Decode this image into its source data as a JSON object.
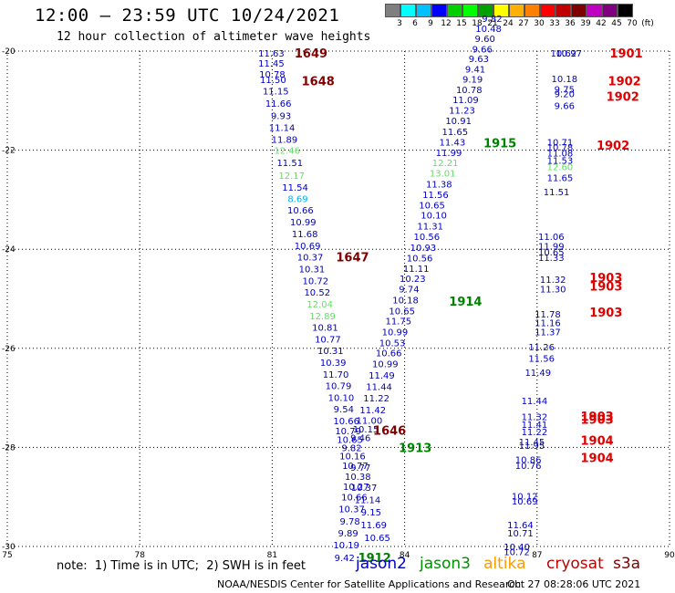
{
  "header": {
    "title": "12:00 – 23:59 UTC 10/24/2021",
    "subtitle": "12 hour collection of altimeter wave heights"
  },
  "colorbar": {
    "colors": [
      "#7f7f7f",
      "#00ffff",
      "#00c0ff",
      "#0000ff",
      "#00d000",
      "#00ff00",
      "#00a000",
      "#ffff00",
      "#ffb000",
      "#ff8000",
      "#ff0000",
      "#c00000",
      "#800000",
      "#c000c0",
      "#800080",
      "#000000"
    ],
    "labels": [
      "3",
      "6",
      "9",
      "12",
      "15",
      "18",
      "21",
      "24",
      "27",
      "30",
      "33",
      "36",
      "39",
      "42",
      "45",
      "70",
      "(ft)"
    ]
  },
  "map": {
    "x_ticks": [
      "75",
      "78",
      "81",
      "84",
      "87",
      "90"
    ],
    "y_ticks": [
      "-20",
      "-22",
      "-24",
      "-26",
      "-28",
      "-30"
    ]
  },
  "observations": [
    {
      "t": "11.63",
      "lon": 80.98,
      "lat": -20.04,
      "c": "#0000c0"
    },
    {
      "t": "11.45",
      "lon": 80.98,
      "lat": -20.24,
      "c": "#0000c0"
    },
    {
      "t": "10.78",
      "lon": 81.0,
      "lat": -20.46,
      "c": "#0000c0"
    },
    {
      "t": "11.50",
      "lon": 81.02,
      "lat": -20.57,
      "c": "#0000c0"
    },
    {
      "t": "11.15",
      "lon": 81.08,
      "lat": -20.8,
      "c": "#0000c0"
    },
    {
      "t": "11.66",
      "lon": 81.14,
      "lat": -21.05,
      "c": "#0000c0"
    },
    {
      "t": "9.93",
      "lon": 81.2,
      "lat": -21.3,
      "c": "#0000c0"
    },
    {
      "t": "11.14",
      "lon": 81.22,
      "lat": -21.54,
      "c": "#0000c0"
    },
    {
      "t": "11.89",
      "lon": 81.28,
      "lat": -21.78,
      "c": "#0000c0"
    },
    {
      "t": "12.46",
      "lon": 81.34,
      "lat": -22.0,
      "c": "#66dd66"
    },
    {
      "t": "11.51",
      "lon": 81.4,
      "lat": -22.25,
      "c": "#0000c0"
    },
    {
      "t": "12.17",
      "lon": 81.44,
      "lat": -22.5,
      "c": "#66dd66"
    },
    {
      "t": "11.54",
      "lon": 81.52,
      "lat": -22.74,
      "c": "#0000c0"
    },
    {
      "t": "8.69",
      "lon": 81.58,
      "lat": -22.97,
      "c": "#00b0ff"
    },
    {
      "t": "10.66",
      "lon": 81.64,
      "lat": -23.2,
      "c": "#0000c0"
    },
    {
      "t": "10.99",
      "lon": 81.7,
      "lat": -23.44,
      "c": "#0000c0"
    },
    {
      "t": "11.68",
      "lon": 81.74,
      "lat": -23.68,
      "c": "#0000c0"
    },
    {
      "t": "10.69",
      "lon": 81.8,
      "lat": -23.92,
      "c": "#0000c0"
    },
    {
      "t": "10.37",
      "lon": 81.86,
      "lat": -24.15,
      "c": "#0000c0"
    },
    {
      "t": "10.31",
      "lon": 81.9,
      "lat": -24.39,
      "c": "#0000c0"
    },
    {
      "t": "10.72",
      "lon": 81.98,
      "lat": -24.63,
      "c": "#0000c0"
    },
    {
      "t": "10.52",
      "lon": 82.02,
      "lat": -24.86,
      "c": "#0000c0"
    },
    {
      "t": "12.04",
      "lon": 82.08,
      "lat": -25.1,
      "c": "#66dd66"
    },
    {
      "t": "12.89",
      "lon": 82.14,
      "lat": -25.34,
      "c": "#66dd66"
    },
    {
      "t": "10.81",
      "lon": 82.2,
      "lat": -25.57,
      "c": "#0000c0"
    },
    {
      "t": "10.77",
      "lon": 82.26,
      "lat": -25.81,
      "c": "#0000c0"
    },
    {
      "t": "10.31",
      "lon": 82.32,
      "lat": -26.04,
      "c": "#0000c0"
    },
    {
      "t": "10.39",
      "lon": 82.38,
      "lat": -26.28,
      "c": "#0000c0"
    },
    {
      "t": "11.70",
      "lon": 82.44,
      "lat": -26.52,
      "c": "#0000c0"
    },
    {
      "t": "10.79",
      "lon": 82.5,
      "lat": -26.75,
      "c": "#0000c0"
    },
    {
      "t": "10.10",
      "lon": 82.56,
      "lat": -26.99,
      "c": "#0000c0"
    },
    {
      "t": "9.54",
      "lon": 82.62,
      "lat": -27.22,
      "c": "#0000c0"
    },
    {
      "t": "10.66",
      "lon": 82.68,
      "lat": -27.46,
      "c": "#0000c0"
    },
    {
      "t": "10.79",
      "lon": 82.72,
      "lat": -27.66,
      "c": "#0000c0"
    },
    {
      "t": "10.65",
      "lon": 82.76,
      "lat": -27.84,
      "c": "#0000c0"
    },
    {
      "t": "9.82",
      "lon": 82.8,
      "lat": -28.0,
      "c": "#0000c0"
    },
    {
      "t": "10.16",
      "lon": 82.82,
      "lat": -28.17,
      "c": "#0000c0"
    },
    {
      "t": "10.77",
      "lon": 82.88,
      "lat": -28.36,
      "c": "#0000c0"
    },
    {
      "t": "10.38",
      "lon": 82.94,
      "lat": -28.58,
      "c": "#0000c0"
    },
    {
      "t": "10.27",
      "lon": 82.9,
      "lat": -28.78,
      "c": "#0000c0"
    },
    {
      "t": "10.66",
      "lon": 82.86,
      "lat": -29.0,
      "c": "#0000c0"
    },
    {
      "t": "10.37",
      "lon": 82.8,
      "lat": -29.24,
      "c": "#0000c0"
    },
    {
      "t": "9.78",
      "lon": 82.76,
      "lat": -29.48,
      "c": "#0000c0"
    },
    {
      "t": "9.89",
      "lon": 82.72,
      "lat": -29.72,
      "c": "#0000c0"
    },
    {
      "t": "10.19",
      "lon": 82.68,
      "lat": -29.96,
      "c": "#0000c0"
    },
    {
      "t": "9.42",
      "lon": 82.64,
      "lat": -30.22,
      "c": "#0000c0"
    },
    {
      "t": "9.77",
      "lon": 83.0,
      "lat": -28.4,
      "c": "#0000c0"
    },
    {
      "t": "10.37",
      "lon": 83.08,
      "lat": -28.8,
      "c": "#0000c0"
    },
    {
      "t": "11.14",
      "lon": 83.16,
      "lat": -29.05,
      "c": "#0000c0"
    },
    {
      "t": "9.15",
      "lon": 83.24,
      "lat": -29.3,
      "c": "#0000c0"
    },
    {
      "t": "11.69",
      "lon": 83.3,
      "lat": -29.56,
      "c": "#0000c0"
    },
    {
      "t": "10.65",
      "lon": 83.38,
      "lat": -29.82,
      "c": "#0000c0"
    },
    {
      "t": "9.46",
      "lon": 83.0,
      "lat": -27.8,
      "c": "#0000c0"
    },
    {
      "t": "10.15",
      "lon": 83.12,
      "lat": -27.62,
      "c": "#0000c0"
    },
    {
      "t": "11.00",
      "lon": 83.2,
      "lat": -27.45,
      "c": "#0000c0"
    },
    {
      "t": "11.42",
      "lon": 83.28,
      "lat": -27.24,
      "c": "#0000c0"
    },
    {
      "t": "11.22",
      "lon": 83.36,
      "lat": -27.0,
      "c": "#0000c0"
    },
    {
      "t": "11.44",
      "lon": 83.42,
      "lat": -26.77,
      "c": "#0000c0"
    },
    {
      "t": "11.49",
      "lon": 83.48,
      "lat": -26.54,
      "c": "#0000c0"
    },
    {
      "t": "10.99",
      "lon": 83.56,
      "lat": -26.31,
      "c": "#0000c0"
    },
    {
      "t": "10.66",
      "lon": 83.64,
      "lat": -26.09,
      "c": "#0000c0"
    },
    {
      "t": "10.53",
      "lon": 83.72,
      "lat": -25.88,
      "c": "#0000c0"
    },
    {
      "t": "10.99",
      "lon": 83.78,
      "lat": -25.66,
      "c": "#0000c0"
    },
    {
      "t": "11.75",
      "lon": 83.86,
      "lat": -25.44,
      "c": "#0000c0"
    },
    {
      "t": "10.65",
      "lon": 83.94,
      "lat": -25.24,
      "c": "#0000c0"
    },
    {
      "t": "10.18",
      "lon": 84.02,
      "lat": -25.02,
      "c": "#0000c0"
    },
    {
      "t": "9.74",
      "lon": 84.1,
      "lat": -24.8,
      "c": "#0000c0"
    },
    {
      "t": "10.23",
      "lon": 84.18,
      "lat": -24.59,
      "c": "#0000c0"
    },
    {
      "t": "11.11",
      "lon": 84.26,
      "lat": -24.38,
      "c": "#0000c0"
    },
    {
      "t": "10.56",
      "lon": 84.34,
      "lat": -24.17,
      "c": "#0000c0"
    },
    {
      "t": "10.93",
      "lon": 84.42,
      "lat": -23.96,
      "c": "#0000c0"
    },
    {
      "t": "10.56",
      "lon": 84.5,
      "lat": -23.74,
      "c": "#0000c0"
    },
    {
      "t": "11.31",
      "lon": 84.58,
      "lat": -23.53,
      "c": "#0000c0"
    },
    {
      "t": "10.10",
      "lon": 84.66,
      "lat": -23.31,
      "c": "#0000c0"
    },
    {
      "t": "10.65",
      "lon": 84.62,
      "lat": -23.1,
      "c": "#0000c0"
    },
    {
      "t": "11.56",
      "lon": 84.7,
      "lat": -22.89,
      "c": "#0000c0"
    },
    {
      "t": "11.38",
      "lon": 84.78,
      "lat": -22.68,
      "c": "#0000c0"
    },
    {
      "t": "13.01",
      "lon": 84.86,
      "lat": -22.46,
      "c": "#66dd66"
    },
    {
      "t": "12.21",
      "lon": 84.92,
      "lat": -22.25,
      "c": "#66dd66"
    },
    {
      "t": "11.99",
      "lon": 85.0,
      "lat": -22.04,
      "c": "#0000c0"
    },
    {
      "t": "11.43",
      "lon": 85.08,
      "lat": -21.83,
      "c": "#0000c0"
    },
    {
      "t": "11.65",
      "lon": 85.14,
      "lat": -21.62,
      "c": "#0000c0"
    },
    {
      "t": "10.91",
      "lon": 85.22,
      "lat": -21.4,
      "c": "#0000c0"
    },
    {
      "t": "11.23",
      "lon": 85.3,
      "lat": -21.19,
      "c": "#0000c0"
    },
    {
      "t": "11.09",
      "lon": 85.38,
      "lat": -20.98,
      "c": "#0000c0"
    },
    {
      "t": "10.78",
      "lon": 85.46,
      "lat": -20.77,
      "c": "#0000c0"
    },
    {
      "t": "9.19",
      "lon": 85.54,
      "lat": -20.56,
      "c": "#0000c0"
    },
    {
      "t": "9.41",
      "lon": 85.6,
      "lat": -20.36,
      "c": "#0000c0"
    },
    {
      "t": "9.63",
      "lon": 85.68,
      "lat": -20.15,
      "c": "#0000c0"
    },
    {
      "t": "9.66",
      "lon": 85.76,
      "lat": -19.95,
      "c": "#0000c0"
    },
    {
      "t": "9.60",
      "lon": 85.82,
      "lat": -19.74,
      "c": "#0000c0"
    },
    {
      "t": "10.48",
      "lon": 85.9,
      "lat": -19.54,
      "c": "#0000c0"
    },
    {
      "t": "9.82",
      "lon": 85.98,
      "lat": -19.34,
      "c": "#0000c0"
    },
    {
      "t": "10.62",
      "lon": 87.6,
      "lat": -20.04,
      "c": "#0000c0"
    },
    {
      "t": "10.97",
      "lon": 87.72,
      "lat": -20.04,
      "c": "#0000c0"
    },
    {
      "t": "10.18",
      "lon": 87.62,
      "lat": -20.55,
      "c": "#0000c0"
    },
    {
      "t": "9.75",
      "lon": 87.62,
      "lat": -20.76,
      "c": "#0000c0"
    },
    {
      "t": "9.20",
      "lon": 87.62,
      "lat": -20.86,
      "c": "#0000c0"
    },
    {
      "t": "9.66",
      "lon": 87.62,
      "lat": -21.1,
      "c": "#0000c0"
    },
    {
      "t": "10.71",
      "lon": 87.52,
      "lat": -21.83,
      "c": "#0000c0"
    },
    {
      "t": "10.78",
      "lon": 87.52,
      "lat": -21.93,
      "c": "#0000c0"
    },
    {
      "t": "11.08",
      "lon": 87.52,
      "lat": -22.05,
      "c": "#0000c0"
    },
    {
      "t": "11.53",
      "lon": 87.52,
      "lat": -22.2,
      "c": "#0000c0"
    },
    {
      "t": "12.60",
      "lon": 87.52,
      "lat": -22.33,
      "c": "#66dd66"
    },
    {
      "t": "11.65",
      "lon": 87.52,
      "lat": -22.55,
      "c": "#0000c0"
    },
    {
      "t": "11.51",
      "lon": 87.44,
      "lat": -22.84,
      "c": "#0000c0"
    },
    {
      "t": "11.06",
      "lon": 87.32,
      "lat": -23.74,
      "c": "#0000c0"
    },
    {
      "t": "11.99",
      "lon": 87.32,
      "lat": -23.93,
      "c": "#0000c0"
    },
    {
      "t": "10.65",
      "lon": 87.32,
      "lat": -24.05,
      "c": "#0000c0"
    },
    {
      "t": "11.33",
      "lon": 87.32,
      "lat": -24.16,
      "c": "#0000c0"
    },
    {
      "t": "11.32",
      "lon": 87.36,
      "lat": -24.6,
      "c": "#0000c0"
    },
    {
      "t": "11.30",
      "lon": 87.36,
      "lat": -24.8,
      "c": "#0000c0"
    },
    {
      "t": "11.78",
      "lon": 87.24,
      "lat": -25.3,
      "c": "#0000c0"
    },
    {
      "t": "11.16",
      "lon": 87.24,
      "lat": -25.48,
      "c": "#0000c0"
    },
    {
      "t": "11.37",
      "lon": 87.24,
      "lat": -25.66,
      "c": "#0000c0"
    },
    {
      "t": "11.26",
      "lon": 87.1,
      "lat": -25.97,
      "c": "#0000c0"
    },
    {
      "t": "11.56",
      "lon": 87.1,
      "lat": -26.2,
      "c": "#0000c0"
    },
    {
      "t": "11.49",
      "lon": 87.02,
      "lat": -26.48,
      "c": "#0000c0"
    },
    {
      "t": "11.44",
      "lon": 86.94,
      "lat": -27.05,
      "c": "#0000c0"
    },
    {
      "t": "11.32",
      "lon": 86.94,
      "lat": -27.38,
      "c": "#0000c0"
    },
    {
      "t": "11.41",
      "lon": 86.94,
      "lat": -27.53,
      "c": "#0000c0"
    },
    {
      "t": "11.22",
      "lon": 86.94,
      "lat": -27.68,
      "c": "#0000c0"
    },
    {
      "t": "11.45",
      "lon": 86.88,
      "lat": -27.88,
      "c": "#0000c0"
    },
    {
      "t": "11.95",
      "lon": 86.88,
      "lat": -27.96,
      "c": "#0000c0"
    },
    {
      "t": "10.86",
      "lon": 86.8,
      "lat": -28.24,
      "c": "#0000c0"
    },
    {
      "t": "10.76",
      "lon": 86.8,
      "lat": -28.36,
      "c": "#0000c0"
    },
    {
      "t": "10.12",
      "lon": 86.72,
      "lat": -28.98,
      "c": "#0000c0"
    },
    {
      "t": "10.69",
      "lon": 86.72,
      "lat": -29.08,
      "c": "#0000c0"
    },
    {
      "t": "11.64",
      "lon": 86.62,
      "lat": -29.56,
      "c": "#0000c0"
    },
    {
      "t": "10.71",
      "lon": 86.62,
      "lat": -29.72,
      "c": "#0000c0"
    },
    {
      "t": "10.40",
      "lon": 86.54,
      "lat": -30.0,
      "c": "#0000c0"
    },
    {
      "t": "10.72",
      "lon": 86.54,
      "lat": -30.1,
      "c": "#0000c0"
    }
  ],
  "pass_labels": [
    {
      "t": "1649",
      "lon": 81.88,
      "lat": -20.04,
      "c": "#800000"
    },
    {
      "t": "1648",
      "lon": 82.04,
      "lat": -20.6,
      "c": "#800000"
    },
    {
      "t": "1647",
      "lon": 82.82,
      "lat": -24.15,
      "c": "#800000"
    },
    {
      "t": "1646",
      "lon": 83.66,
      "lat": -27.65,
      "c": "#800000"
    },
    {
      "t": "1915",
      "lon": 86.16,
      "lat": -21.85,
      "c": "#008000"
    },
    {
      "t": "1914",
      "lon": 85.38,
      "lat": -25.05,
      "c": "#008000"
    },
    {
      "t": "1913",
      "lon": 84.24,
      "lat": -28.0,
      "c": "#008000"
    },
    {
      "t": "1912",
      "lon": 83.32,
      "lat": -30.22,
      "c": "#008000"
    },
    {
      "t": "1901",
      "lon": 89.02,
      "lat": -20.04,
      "c": "#e00000"
    },
    {
      "t": "1902",
      "lon": 88.98,
      "lat": -20.6,
      "c": "#e00000"
    },
    {
      "t": "1902",
      "lon": 88.94,
      "lat": -20.91,
      "c": "#e00000"
    },
    {
      "t": "1902",
      "lon": 88.72,
      "lat": -21.9,
      "c": "#e00000"
    },
    {
      "t": "1903",
      "lon": 88.56,
      "lat": -24.57,
      "c": "#e00000"
    },
    {
      "t": "1903",
      "lon": 88.56,
      "lat": -24.74,
      "c": "#e00000"
    },
    {
      "t": "1903",
      "lon": 88.56,
      "lat": -25.27,
      "c": "#e00000"
    },
    {
      "t": "1903",
      "lon": 88.36,
      "lat": -27.37,
      "c": "#e00000"
    },
    {
      "t": "1903",
      "lon": 88.36,
      "lat": -27.43,
      "c": "#e00000"
    },
    {
      "t": "1904",
      "lon": 88.36,
      "lat": -27.85,
      "c": "#e00000"
    },
    {
      "t": "1904",
      "lon": 88.36,
      "lat": -28.2,
      "c": "#e00000"
    }
  ],
  "footer": {
    "note": "note:  1) Time is in UTC;  2) SWH is in feet",
    "credit": "NOAA/NESDIS Center for Satellite Applications and Research",
    "timestamp": "Oct 27 08:28:06 UTC 2021",
    "satellites": [
      {
        "name": "jason2",
        "color": "#0000c0"
      },
      {
        "name": "jason3",
        "color": "#009000"
      },
      {
        "name": "altika",
        "color": "#ff9900"
      },
      {
        "name": "cryosat",
        "color": "#c00000"
      },
      {
        "name": "s3a",
        "color": "#800000"
      }
    ]
  }
}
